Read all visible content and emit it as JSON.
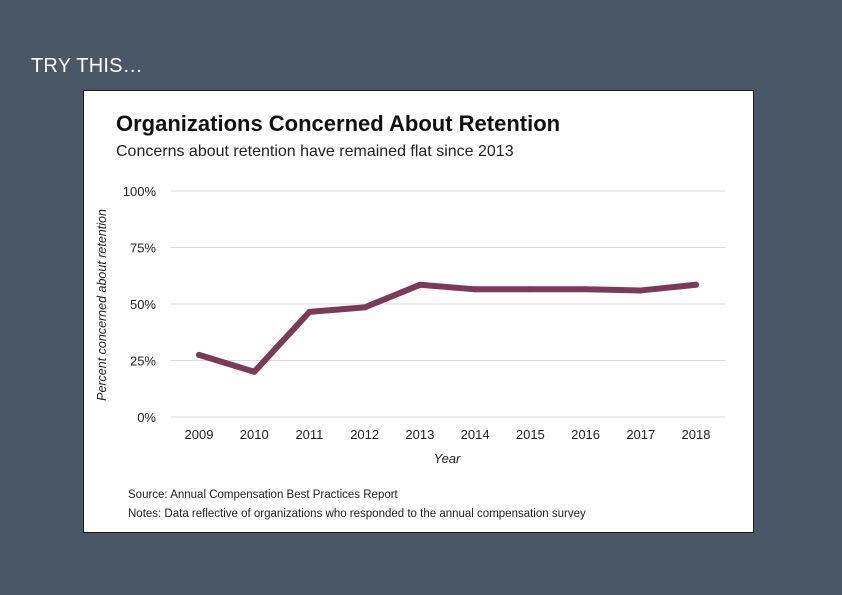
{
  "slide": {
    "heading": "TRY THIS…"
  },
  "colors": {
    "background": "#4a5766",
    "line": "#7b3a5a",
    "grid": "#d9d9d9"
  },
  "chart_data": {
    "type": "line",
    "title": "Organizations Concerned About Retention",
    "subtitle": "Concerns about retention have remained flat since 2013",
    "xlabel": "Year",
    "ylabel": "Percent concerned about retention",
    "categories": [
      "2009",
      "2010",
      "2011",
      "2012",
      "2013",
      "2014",
      "2015",
      "2016",
      "2017",
      "2018"
    ],
    "series": [
      {
        "values": [
          27.5,
          20,
          46.5,
          48.5,
          58.5,
          56.5,
          56.5,
          56.5,
          56,
          58.5
        ]
      }
    ],
    "ylim": [
      0,
      100
    ],
    "yticks": [
      0,
      25,
      50,
      75,
      100
    ],
    "ytick_labels": [
      "0%",
      "25%",
      "50%",
      "75%",
      "100%"
    ],
    "grid": true
  },
  "footer": {
    "source": "Source: Annual Compensation Best Practices Report",
    "notes": "Notes: Data reflective of organizations who responded to the annual compensation survey"
  }
}
